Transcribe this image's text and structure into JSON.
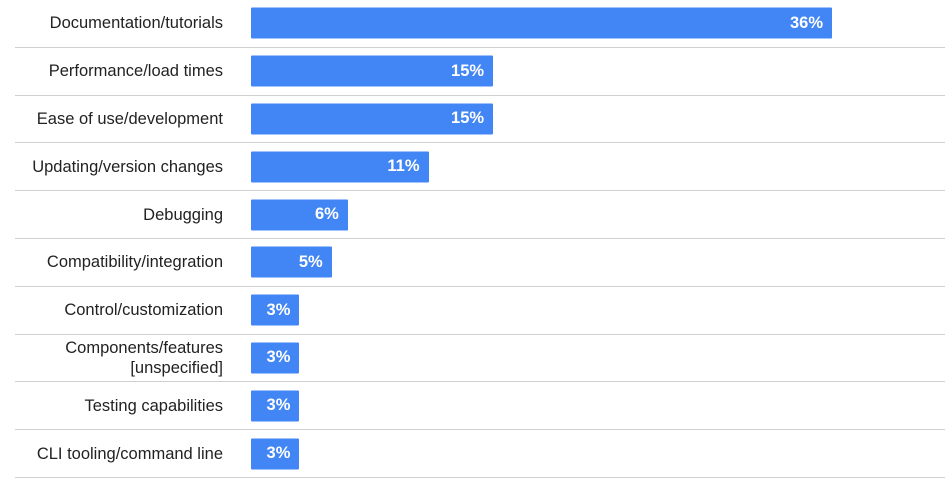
{
  "chart_data": {
    "type": "bar",
    "orientation": "horizontal",
    "color": "#4285f4",
    "categories": [
      "Documentation/tutorials",
      "Performance/load times",
      "Ease of use/development",
      "Updating/version changes",
      "Debugging",
      "Compatibility/integration",
      "Control/customization",
      "Components/features [unspecified]",
      "Testing capabilities",
      "CLI tooling/command line"
    ],
    "values": [
      36,
      15,
      15,
      11,
      6,
      5,
      3,
      3,
      3,
      3
    ],
    "value_labels": [
      "36%",
      "15%",
      "15%",
      "11%",
      "6%",
      "5%",
      "3%",
      "3%",
      "3%",
      "3%"
    ]
  }
}
